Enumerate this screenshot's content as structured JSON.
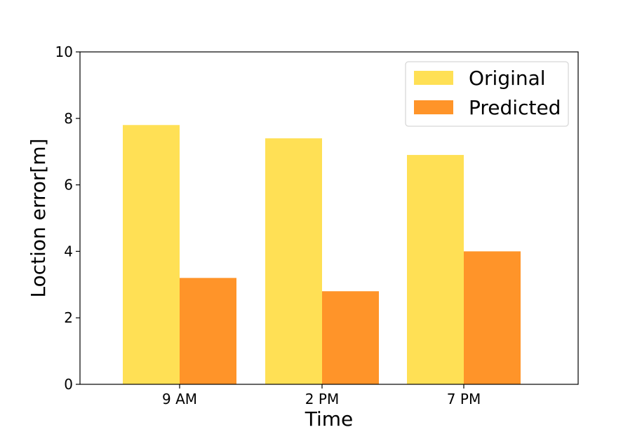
{
  "chart_data": {
    "type": "bar",
    "title": "",
    "xlabel": "Time",
    "ylabel": "Loction error[m]",
    "categories": [
      "9 AM",
      "2 PM",
      "7 PM"
    ],
    "series": [
      {
        "name": "Original",
        "values": [
          7.8,
          7.4,
          6.9
        ],
        "color": "#FFE055"
      },
      {
        "name": "Predicted",
        "values": [
          3.2,
          2.8,
          4.0
        ],
        "color": "#FF9429"
      }
    ],
    "ylim": [
      0,
      10
    ],
    "yticks": [
      0,
      2,
      4,
      6,
      8,
      10
    ],
    "grid": false,
    "legend": "top-right"
  }
}
